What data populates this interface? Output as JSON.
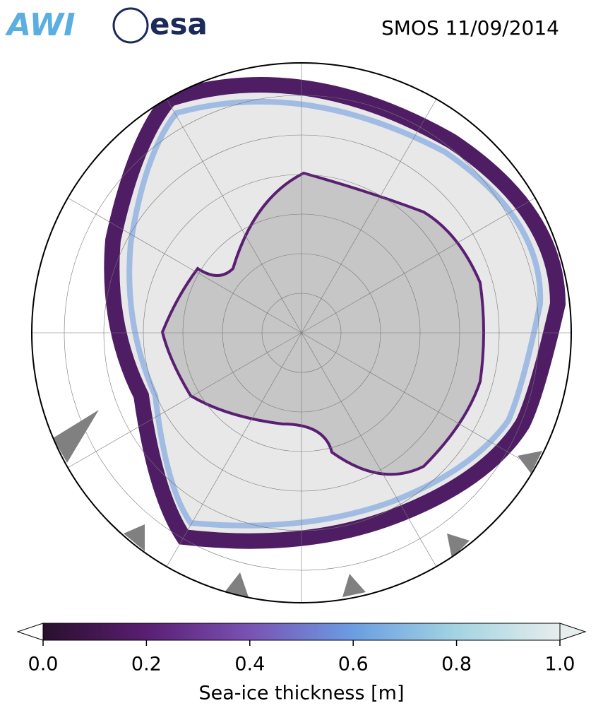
{
  "header": {
    "logos": [
      "AWI",
      "esa"
    ],
    "title": "SMOS 11/09/2014"
  },
  "colorbar": {
    "label": "Sea-ice thickness [m]",
    "lim": [
      0,
      1
    ],
    "ticks": [
      {
        "value": 0,
        "label": "0.0"
      },
      0.2,
      0.4,
      0.6,
      0.8,
      {
        "value": 1,
        "label": "1.0"
      }
    ],
    "colors": [
      "#2a0f2e",
      "#5a1e72",
      "#7a52b4",
      "#6b9de2",
      "#a3d4e2",
      "#e6eded"
    ]
  }
}
